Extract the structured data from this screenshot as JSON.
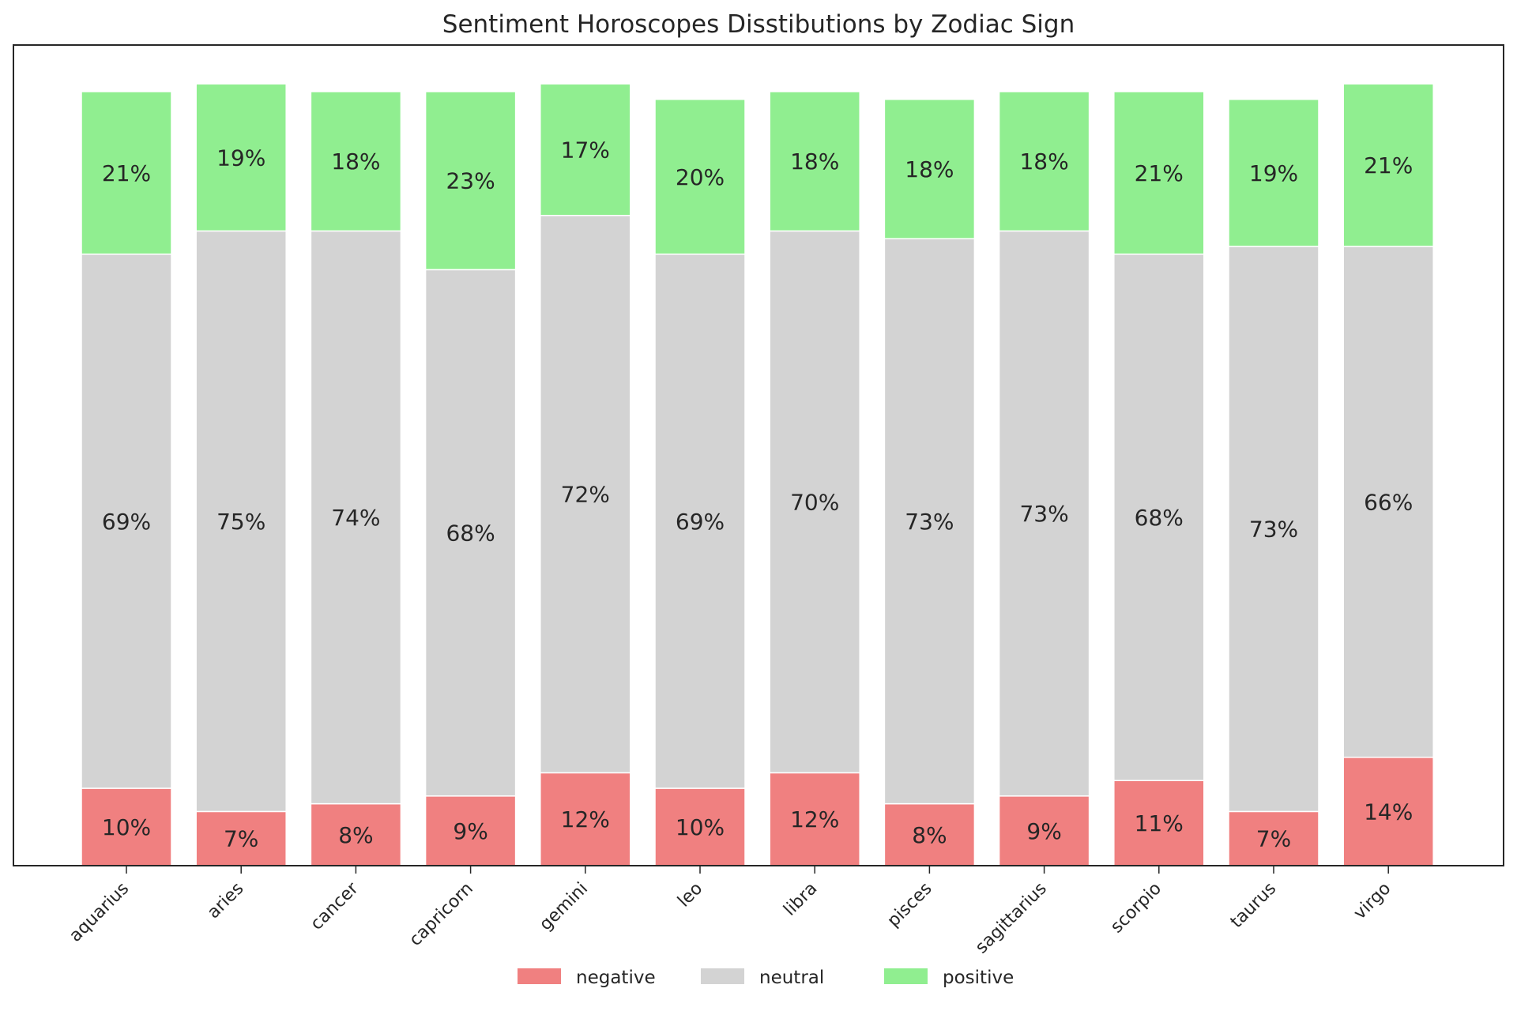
{
  "chart_data": {
    "type": "bar",
    "stacked": true,
    "title": "Sentiment Horoscopes Disstibutions by Zodiac Sign",
    "xlabel": "",
    "ylabel": "",
    "categories": [
      "aquarius",
      "aries",
      "cancer",
      "capricorn",
      "gemini",
      "leo",
      "libra",
      "pisces",
      "sagittarius",
      "scorpio",
      "taurus",
      "virgo"
    ],
    "series": [
      {
        "name": "negative",
        "color": "#f08080",
        "values": [
          10,
          7,
          8,
          9,
          12,
          10,
          12,
          8,
          9,
          11,
          7,
          14
        ],
        "labels": [
          "10%",
          "7%",
          "8%",
          "9%",
          "12%",
          "10%",
          "12%",
          "8%",
          "9%",
          "11%",
          "7%",
          "14%"
        ]
      },
      {
        "name": "neutral",
        "color": "#d3d3d3",
        "values": [
          69,
          75,
          74,
          68,
          72,
          69,
          70,
          73,
          73,
          68,
          73,
          66
        ],
        "labels": [
          "69%",
          "75%",
          "74%",
          "68%",
          "72%",
          "69%",
          "70%",
          "73%",
          "73%",
          "68%",
          "73%",
          "66%"
        ]
      },
      {
        "name": "positive",
        "color": "#90ee90",
        "values": [
          21,
          19,
          18,
          23,
          17,
          20,
          18,
          18,
          18,
          21,
          19,
          21
        ],
        "labels": [
          "21%",
          "19%",
          "18%",
          "23%",
          "17%",
          "20%",
          "18%",
          "18%",
          "18%",
          "21%",
          "19%",
          "21%"
        ]
      }
    ],
    "legend_position": "bottom-center",
    "grid": false,
    "y_ticks_visible": false
  }
}
